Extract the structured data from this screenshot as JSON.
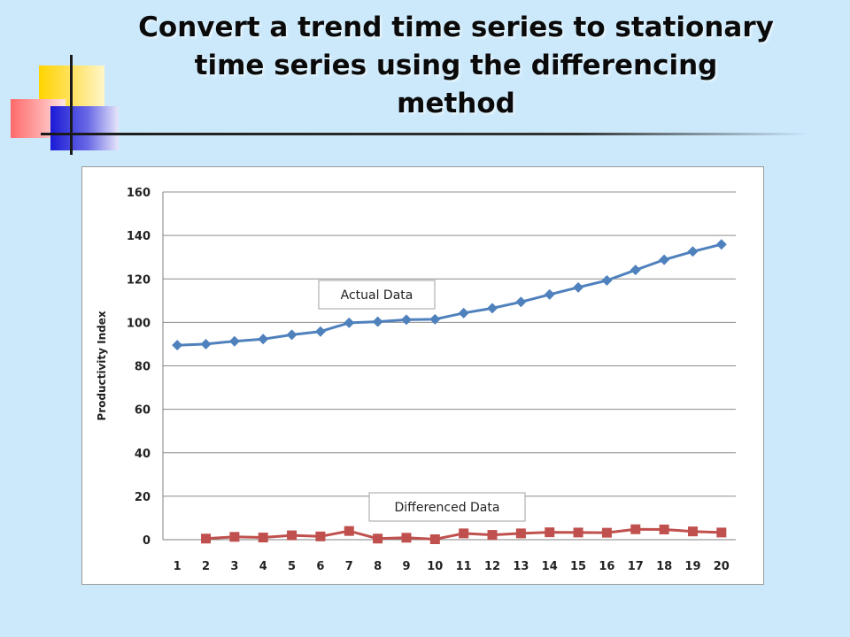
{
  "slide": {
    "title": "Convert a trend time series to stationary time series using the differencing method"
  },
  "colors": {
    "background": "#cce9fb",
    "actual_series": "#4f81bd",
    "differenced_series": "#c0504d"
  },
  "chart_data": {
    "type": "line",
    "title": "",
    "xlabel": "",
    "ylabel": "Productivity Index",
    "ylim": [
      0,
      160
    ],
    "yticks": [
      0,
      20,
      40,
      60,
      80,
      100,
      120,
      140,
      160
    ],
    "grid": true,
    "x": [
      1,
      2,
      3,
      4,
      5,
      6,
      7,
      8,
      9,
      10,
      11,
      12,
      13,
      14,
      15,
      16,
      17,
      18,
      19,
      20
    ],
    "series": [
      {
        "name": "Actual Data",
        "marker": "diamond",
        "values": [
          89.5,
          90,
          91.3,
          92.3,
          94.3,
          95.8,
          99.8,
          100.3,
          101.2,
          101.4,
          104.3,
          106.5,
          109.4,
          112.8,
          116.1,
          119.3,
          124.1,
          128.8,
          132.6,
          135.9
        ]
      },
      {
        "name": "Differenced Data",
        "marker": "square",
        "values": [
          null,
          0.5,
          1.3,
          1.0,
          2.0,
          1.5,
          4.0,
          0.5,
          0.9,
          0.2,
          2.9,
          2.2,
          2.9,
          3.4,
          3.3,
          3.2,
          4.8,
          4.7,
          3.8,
          3.3
        ]
      }
    ]
  }
}
